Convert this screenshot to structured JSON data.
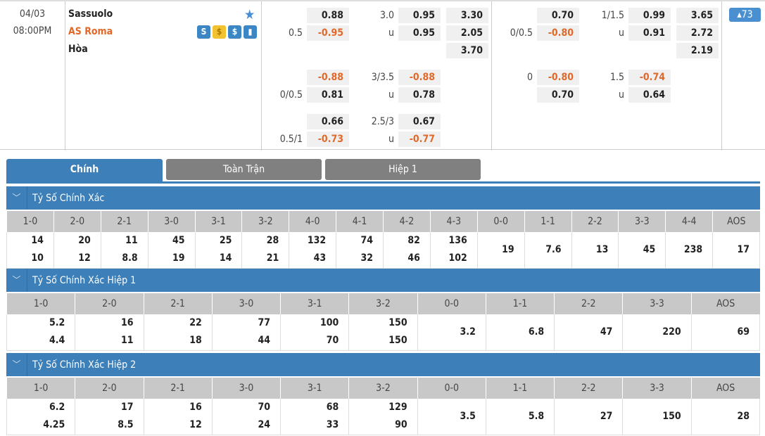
{
  "match": {
    "date": "04/03",
    "time": "08:00PM",
    "home": "Sassuolo",
    "away": "AS Roma",
    "draw": "Hòa",
    "more_count": "73",
    "icons": [
      "stats-s-icon",
      "coin-icon",
      "dollar-icon",
      "bar-chart-icon"
    ]
  },
  "colors": {
    "accent": "#3d7fb8",
    "negative": "#e0692a",
    "tab_inactive": "#808080",
    "away_team": "#e0692a"
  },
  "odds": {
    "full": [
      {
        "h1": "",
        "o1": "0.88",
        "h2": "3.0",
        "o2": "0.95",
        "x": "3.30"
      },
      {
        "h1": "0.5",
        "o1": "-0.95",
        "h2": "u",
        "o2": "0.95",
        "x": "2.05"
      },
      {
        "h1": "",
        "o1": "",
        "h2": "",
        "o2": "",
        "x": "3.70"
      },
      {
        "h1": "",
        "o1": "-0.88",
        "h2": "3/3.5",
        "o2": "-0.88",
        "x": ""
      },
      {
        "h1": "0/0.5",
        "o1": "0.81",
        "h2": "u",
        "o2": "0.78",
        "x": ""
      },
      {
        "h1": "",
        "o1": "0.66",
        "h2": "2.5/3",
        "o2": "0.67",
        "x": ""
      },
      {
        "h1": "0.5/1",
        "o1": "-0.73",
        "h2": "u",
        "o2": "-0.77",
        "x": ""
      }
    ],
    "half": [
      {
        "h1": "",
        "o1": "0.70",
        "h2": "1/1.5",
        "o2": "0.99",
        "x": "3.65"
      },
      {
        "h1": "0/0.5",
        "o1": "-0.80",
        "h2": "u",
        "o2": "0.91",
        "x": "2.72"
      },
      {
        "h1": "",
        "o1": "",
        "h2": "",
        "o2": "",
        "x": "2.19"
      },
      {
        "h1": "0",
        "o1": "-0.80",
        "h2": "1.5",
        "o2": "-0.74",
        "x": ""
      },
      {
        "h1": "",
        "o1": "0.70",
        "h2": "u",
        "o2": "0.64",
        "x": ""
      }
    ]
  },
  "tabs": [
    {
      "label": "Chính",
      "active": true
    },
    {
      "label": "Toàn Trận",
      "active": false
    },
    {
      "label": "Hiệp 1",
      "active": false
    }
  ],
  "sections": [
    {
      "title": "Tỷ Số Chính Xác",
      "cols": [
        "1-0",
        "2-0",
        "2-1",
        "3-0",
        "3-1",
        "3-2",
        "4-0",
        "4-1",
        "4-2",
        "4-3",
        "0-0",
        "1-1",
        "2-2",
        "3-3",
        "4-4",
        "AOS"
      ],
      "vals": [
        [
          "14",
          "10"
        ],
        [
          "20",
          "12"
        ],
        [
          "11",
          "8.8"
        ],
        [
          "45",
          "19"
        ],
        [
          "25",
          "14"
        ],
        [
          "28",
          "21"
        ],
        [
          "132",
          "43"
        ],
        [
          "74",
          "32"
        ],
        [
          "82",
          "46"
        ],
        [
          "136",
          "102"
        ],
        [
          "19"
        ],
        [
          "7.6"
        ],
        [
          "13"
        ],
        [
          "45"
        ],
        [
          "238"
        ],
        [
          "17"
        ]
      ]
    },
    {
      "title": "Tỷ Số Chính Xác Hiệp 1",
      "cols": [
        "1-0",
        "2-0",
        "2-1",
        "3-0",
        "3-1",
        "3-2",
        "0-0",
        "1-1",
        "2-2",
        "3-3",
        "AOS"
      ],
      "vals": [
        [
          "5.2",
          "4.4"
        ],
        [
          "16",
          "11"
        ],
        [
          "22",
          "18"
        ],
        [
          "77",
          "44"
        ],
        [
          "100",
          "70"
        ],
        [
          "150",
          "150"
        ],
        [
          "3.2"
        ],
        [
          "6.8"
        ],
        [
          "47"
        ],
        [
          "220"
        ],
        [
          "69"
        ]
      ]
    },
    {
      "title": "Tỷ Số Chính Xác Hiệp 2",
      "cols": [
        "1-0",
        "2-0",
        "2-1",
        "3-0",
        "3-1",
        "3-2",
        "0-0",
        "1-1",
        "2-2",
        "3-3",
        "AOS"
      ],
      "vals": [
        [
          "6.2",
          "4.25"
        ],
        [
          "17",
          "8.5"
        ],
        [
          "16",
          "12"
        ],
        [
          "70",
          "24"
        ],
        [
          "68",
          "33"
        ],
        [
          "129",
          "90"
        ],
        [
          "3.5"
        ],
        [
          "5.8"
        ],
        [
          "27"
        ],
        [
          "150"
        ],
        [
          "28"
        ]
      ]
    }
  ]
}
